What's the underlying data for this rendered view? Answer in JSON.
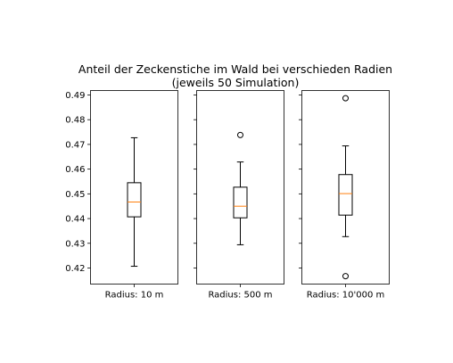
{
  "chart_data": {
    "type": "box",
    "title_lines": [
      "Anteil der Zeckenstiche im Wald bei verschieden Radien",
      "(jeweils 50 Simulation)"
    ],
    "xlabel": "",
    "ylabel": "",
    "ylim": [
      0.4135,
      0.4918
    ],
    "yticks": [
      0.42,
      0.43,
      0.44,
      0.45,
      0.46,
      0.47,
      0.48,
      0.49
    ],
    "ytick_labels": [
      "0.42",
      "0.43",
      "0.44",
      "0.45",
      "0.46",
      "0.47",
      "0.48",
      "0.49"
    ],
    "shared_y": true,
    "grid": false,
    "panels": [
      {
        "label": "Radius: 10 m",
        "whisker_low": 0.4207,
        "q1": 0.4407,
        "median": 0.4467,
        "q3": 0.4545,
        "whisker_high": 0.4727,
        "outliers": []
      },
      {
        "label": "Radius: 500 m",
        "whisker_low": 0.4294,
        "q1": 0.4403,
        "median": 0.445,
        "q3": 0.4527,
        "whisker_high": 0.4629,
        "outliers": [
          0.4738
        ]
      },
      {
        "label": "Radius: 10'000 m",
        "whisker_low": 0.4327,
        "q1": 0.4414,
        "median": 0.4501,
        "q3": 0.4578,
        "whisker_high": 0.4694,
        "outliers": [
          0.4887,
          0.4167
        ]
      }
    ],
    "colors": {
      "box": "#000000",
      "median": "#ff7f0e",
      "outlier": "#000000"
    }
  }
}
